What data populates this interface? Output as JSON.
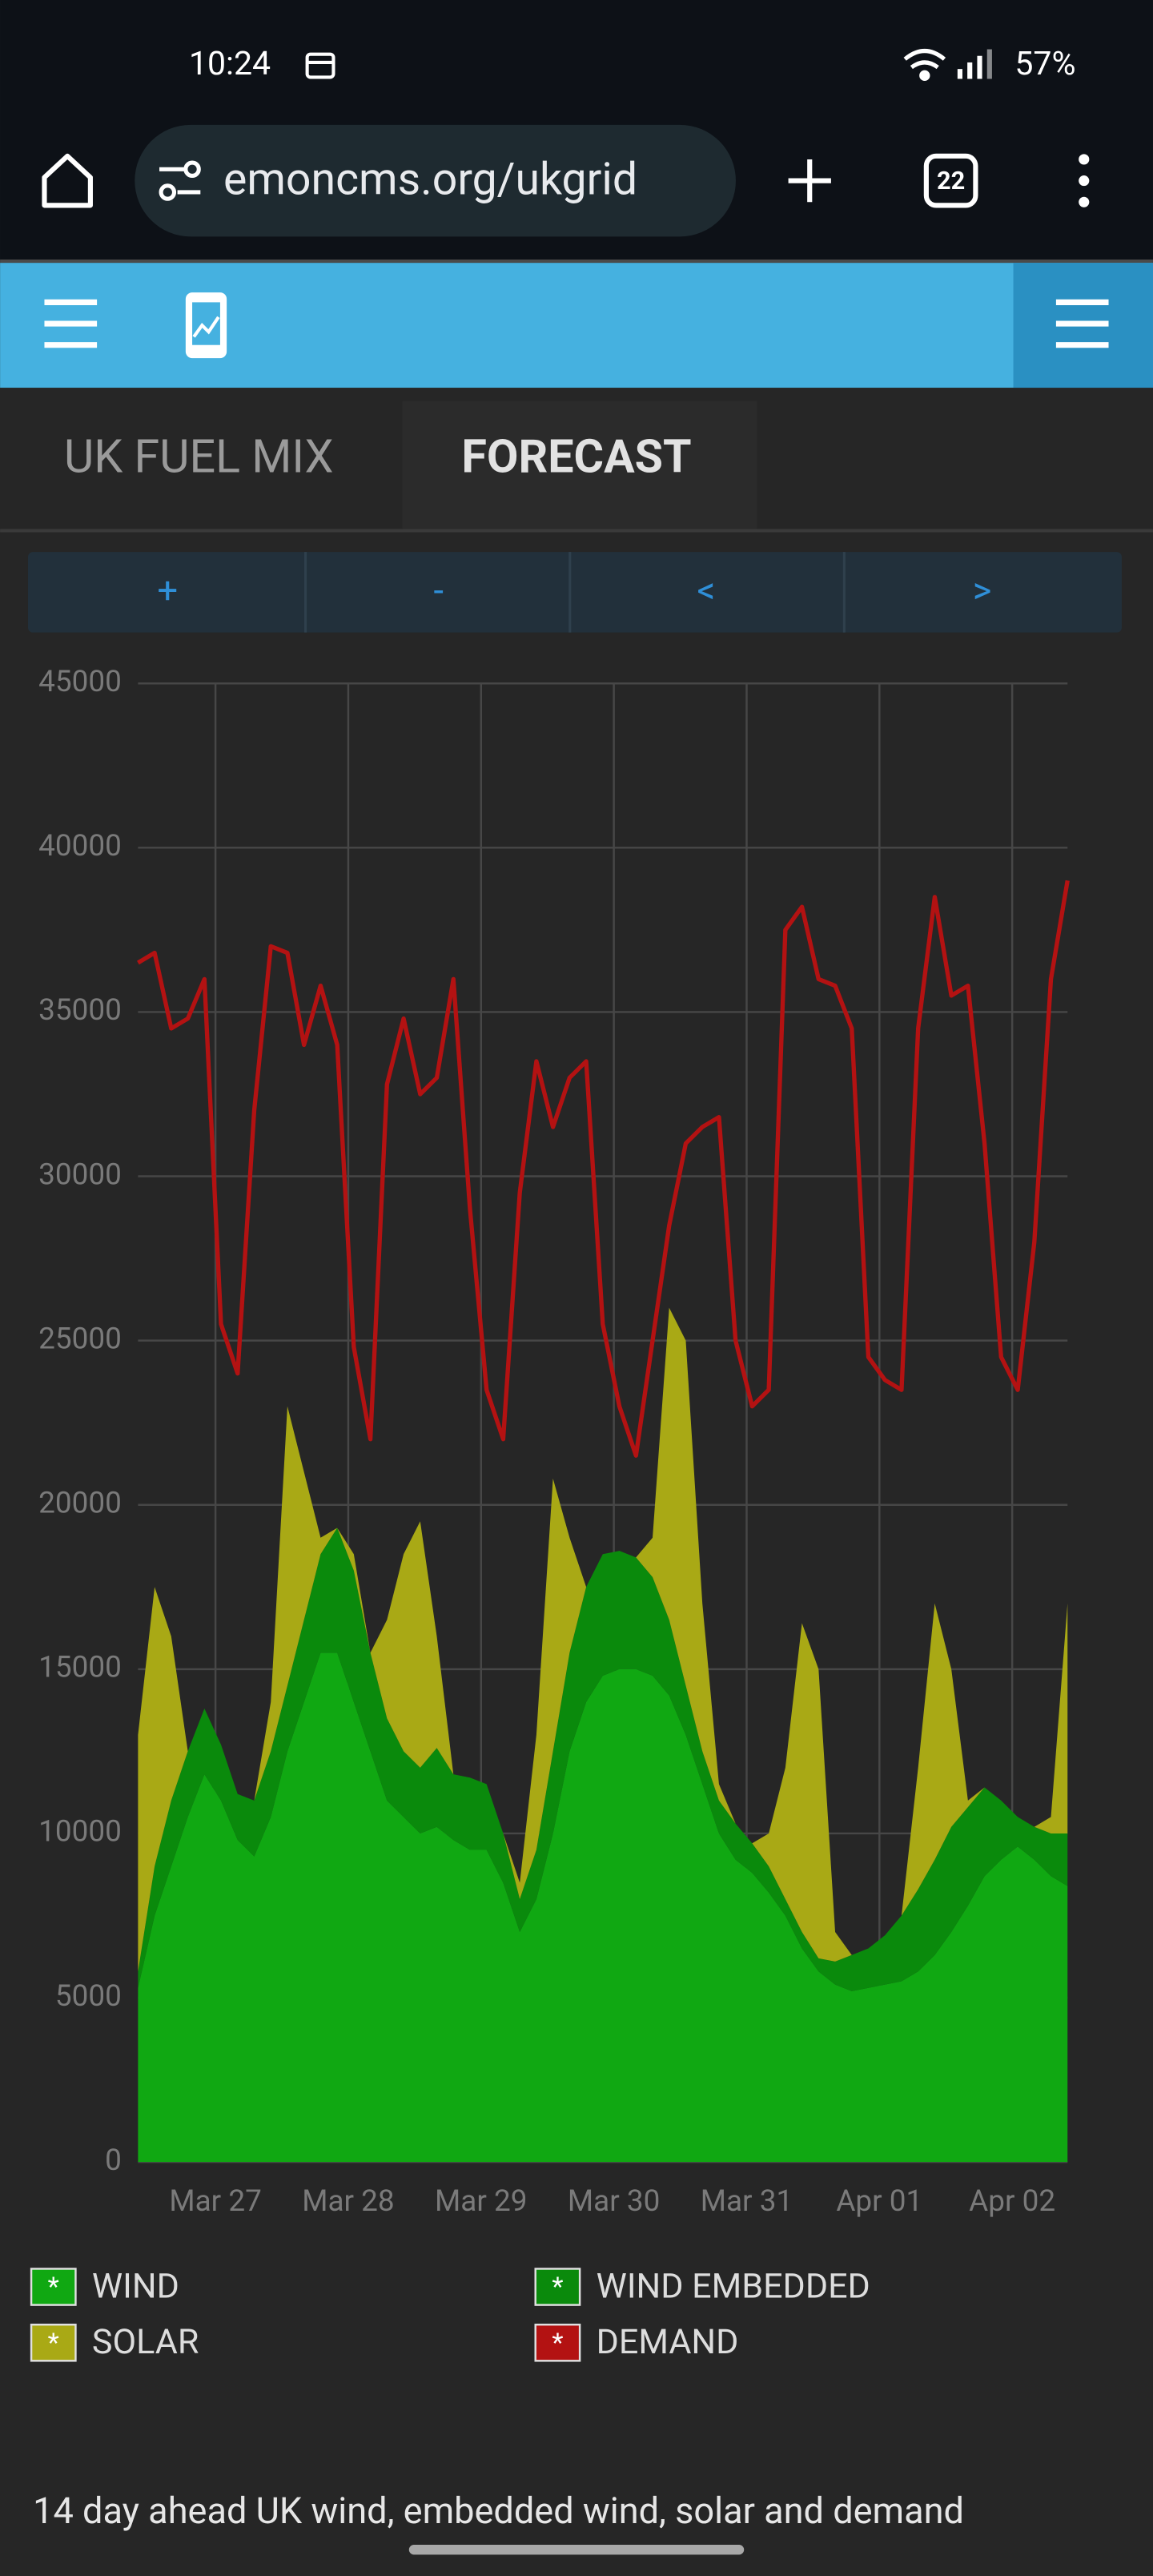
{
  "status_bar": {
    "time": "10:24",
    "battery": "57%"
  },
  "browser": {
    "url": "emoncms.org/ukgrid",
    "tab_count": "22"
  },
  "tabs": [
    "UK FUEL MIX",
    "FORECAST"
  ],
  "buttons": [
    "+",
    "-",
    "<",
    ">"
  ],
  "chart_data": {
    "type": "area",
    "stacked": true,
    "grid": true,
    "legend_marker": "*",
    "x": [
      0,
      3,
      6,
      9,
      12,
      15,
      18,
      21,
      24,
      27,
      30,
      33,
      36,
      39,
      42,
      45,
      48,
      51,
      54,
      57,
      60,
      63,
      66,
      69,
      72,
      75,
      78,
      81,
      84,
      87,
      90,
      93,
      96,
      99,
      102,
      105,
      108,
      111,
      114,
      117,
      120,
      123,
      126,
      129,
      132,
      135,
      138,
      141,
      144,
      147,
      150,
      153,
      156,
      159,
      162,
      165,
      168
    ],
    "xlim": [
      0,
      168
    ],
    "xticks": [
      {
        "value": 14,
        "label": "Mar 27"
      },
      {
        "value": 38,
        "label": "Mar 28"
      },
      {
        "value": 62,
        "label": "Mar 29"
      },
      {
        "value": 86,
        "label": "Mar 30"
      },
      {
        "value": 110,
        "label": "Mar 31"
      },
      {
        "value": 134,
        "label": "Apr 01"
      },
      {
        "value": 158,
        "label": "Apr 02"
      }
    ],
    "ylim": [
      0,
      45000
    ],
    "yticks": [
      0,
      5000,
      10000,
      15000,
      20000,
      25000,
      30000,
      35000,
      40000,
      45000
    ],
    "series": [
      {
        "name": "WIND",
        "type": "area",
        "color": "#10a812",
        "values": [
          5300,
          7500,
          9000,
          10500,
          11800,
          11000,
          9800,
          9300,
          10500,
          12500,
          14000,
          15500,
          15500,
          14000,
          12500,
          11000,
          10500,
          10000,
          10200,
          9800,
          9500,
          9500,
          8500,
          7000,
          8000,
          10000,
          12500,
          14000,
          14800,
          15000,
          15000,
          14800,
          14200,
          13000,
          11500,
          10000,
          9200,
          8800,
          8200,
          7500,
          6500,
          5800,
          5400,
          5200,
          5300,
          5400,
          5500,
          5800,
          6300,
          7000,
          7800,
          8700,
          9200,
          9600,
          9200,
          8700,
          8400
        ]
      },
      {
        "name": "WIND EMBEDDED",
        "type": "area",
        "color": "#0a8a0c",
        "values": [
          500,
          1500,
          2000,
          2000,
          2000,
          1700,
          1400,
          1700,
          2000,
          2000,
          2500,
          3000,
          3800,
          4000,
          3000,
          2500,
          2000,
          2000,
          2400,
          2000,
          2200,
          2000,
          1500,
          1000,
          1500,
          2500,
          3000,
          3500,
          3700,
          3600,
          3400,
          3000,
          2300,
          1500,
          1000,
          1000,
          1100,
          900,
          800,
          500,
          500,
          400,
          700,
          1100,
          1200,
          1500,
          2000,
          2500,
          2900,
          3200,
          3000,
          2700,
          1800,
          900,
          1000,
          1300,
          1600
        ]
      },
      {
        "name": "SOLAR",
        "type": "area",
        "color": "#a9a915",
        "values": [
          7200,
          8500,
          5000,
          0,
          0,
          0,
          0,
          0,
          1500,
          8500,
          4500,
          500,
          0,
          500,
          0,
          3000,
          6000,
          7500,
          3400,
          0,
          0,
          0,
          0,
          500,
          3500,
          8300,
          3500,
          0,
          0,
          0,
          0,
          1200,
          9500,
          10500,
          4500,
          500,
          0,
          0,
          1000,
          4000,
          9400,
          8800,
          900,
          0,
          0,
          0,
          0,
          3700,
          7800,
          4800,
          200,
          0,
          0,
          0,
          0,
          500,
          7000
        ]
      },
      {
        "name": "DEMAND",
        "type": "line",
        "color": "#b31212",
        "values": [
          36500,
          36800,
          34500,
          34800,
          36000,
          25500,
          24000,
          32000,
          37000,
          36800,
          34000,
          35800,
          34000,
          24800,
          22000,
          32800,
          34800,
          32500,
          33000,
          36000,
          29000,
          23500,
          22000,
          29500,
          33500,
          31500,
          33000,
          33500,
          25500,
          23000,
          21500,
          25000,
          28500,
          31000,
          31500,
          31800,
          25000,
          23000,
          23500,
          37500,
          38200,
          36000,
          35800,
          34500,
          24500,
          23800,
          23500,
          34500,
          38500,
          35500,
          35800,
          31000,
          24500,
          23500,
          28000,
          36000,
          39000
        ]
      }
    ]
  },
  "caption": "14 day ahead UK wind, embedded wind, solar and demand"
}
